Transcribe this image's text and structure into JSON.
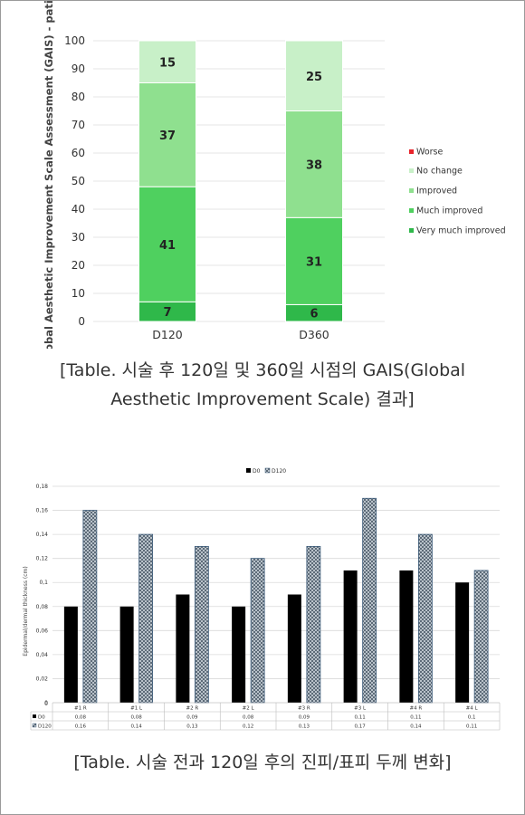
{
  "captions": {
    "gais_line1": "[Table. 시술 후 120일 및 360일 시점의 GAIS(Global",
    "gais_line2": "Aesthetic Improvement Scale) 결과]",
    "thickness": "[Table. 시술 전과 120일 후의 진피/표피 두께 변화]"
  },
  "chart_data": [
    {
      "type": "bar",
      "stacked": true,
      "categories": [
        "D120",
        "D360"
      ],
      "ylabel": "Global Aesthetic Improvement Scale Assessment (GAIS) - patient",
      "ylim": [
        0,
        100
      ],
      "yticks": [
        0,
        10,
        20,
        30,
        40,
        50,
        60,
        70,
        80,
        90,
        100
      ],
      "legend_position": "right",
      "series": [
        {
          "name": "Very much improved",
          "values": [
            7,
            6
          ],
          "color": "#2fb84a"
        },
        {
          "name": "Much improved",
          "values": [
            41,
            31
          ],
          "color": "#4fd05f"
        },
        {
          "name": "Improved",
          "values": [
            37,
            38
          ],
          "color": "#8fe08f"
        },
        {
          "name": "No change",
          "values": [
            15,
            25
          ],
          "color": "#c8f0c8"
        },
        {
          "name": "Worse",
          "values": [
            0,
            0
          ],
          "color": "#e8232a"
        }
      ],
      "legend_order": [
        "Worse",
        "No change",
        "Improved",
        "Much improved",
        "Very much improved"
      ]
    },
    {
      "type": "bar",
      "categories": [
        "#1 R",
        "#1 L",
        "#2 R",
        "#2 L",
        "#3 R",
        "#3 L",
        "#4 R",
        "#4 L"
      ],
      "ylabel": "Epidermal/dermal thickness (cm)",
      "ylim": [
        0,
        0.18
      ],
      "yticks": [
        "0",
        "0,02",
        "0,04",
        "0,06",
        "0,08",
        "0,1",
        "0,12",
        "0,14",
        "0,16",
        "0,18"
      ],
      "legend_position": "top",
      "series": [
        {
          "name": "D0",
          "values": [
            0.08,
            0.08,
            0.09,
            0.08,
            0.09,
            0.11,
            0.11,
            0.1
          ],
          "labels": [
            "0,08",
            "0,08",
            "0,09",
            "0,08",
            "0,09",
            "0,11",
            "0,11",
            "0,1"
          ],
          "color": "#000000"
        },
        {
          "name": "D120",
          "values": [
            0.16,
            0.14,
            0.13,
            0.12,
            0.13,
            0.17,
            0.14,
            0.11
          ],
          "labels": [
            "0,16",
            "0,14",
            "0,13",
            "0,12",
            "0,13",
            "0,17",
            "0,14",
            "0,11"
          ],
          "color": "#8a9aa8"
        }
      ]
    }
  ]
}
